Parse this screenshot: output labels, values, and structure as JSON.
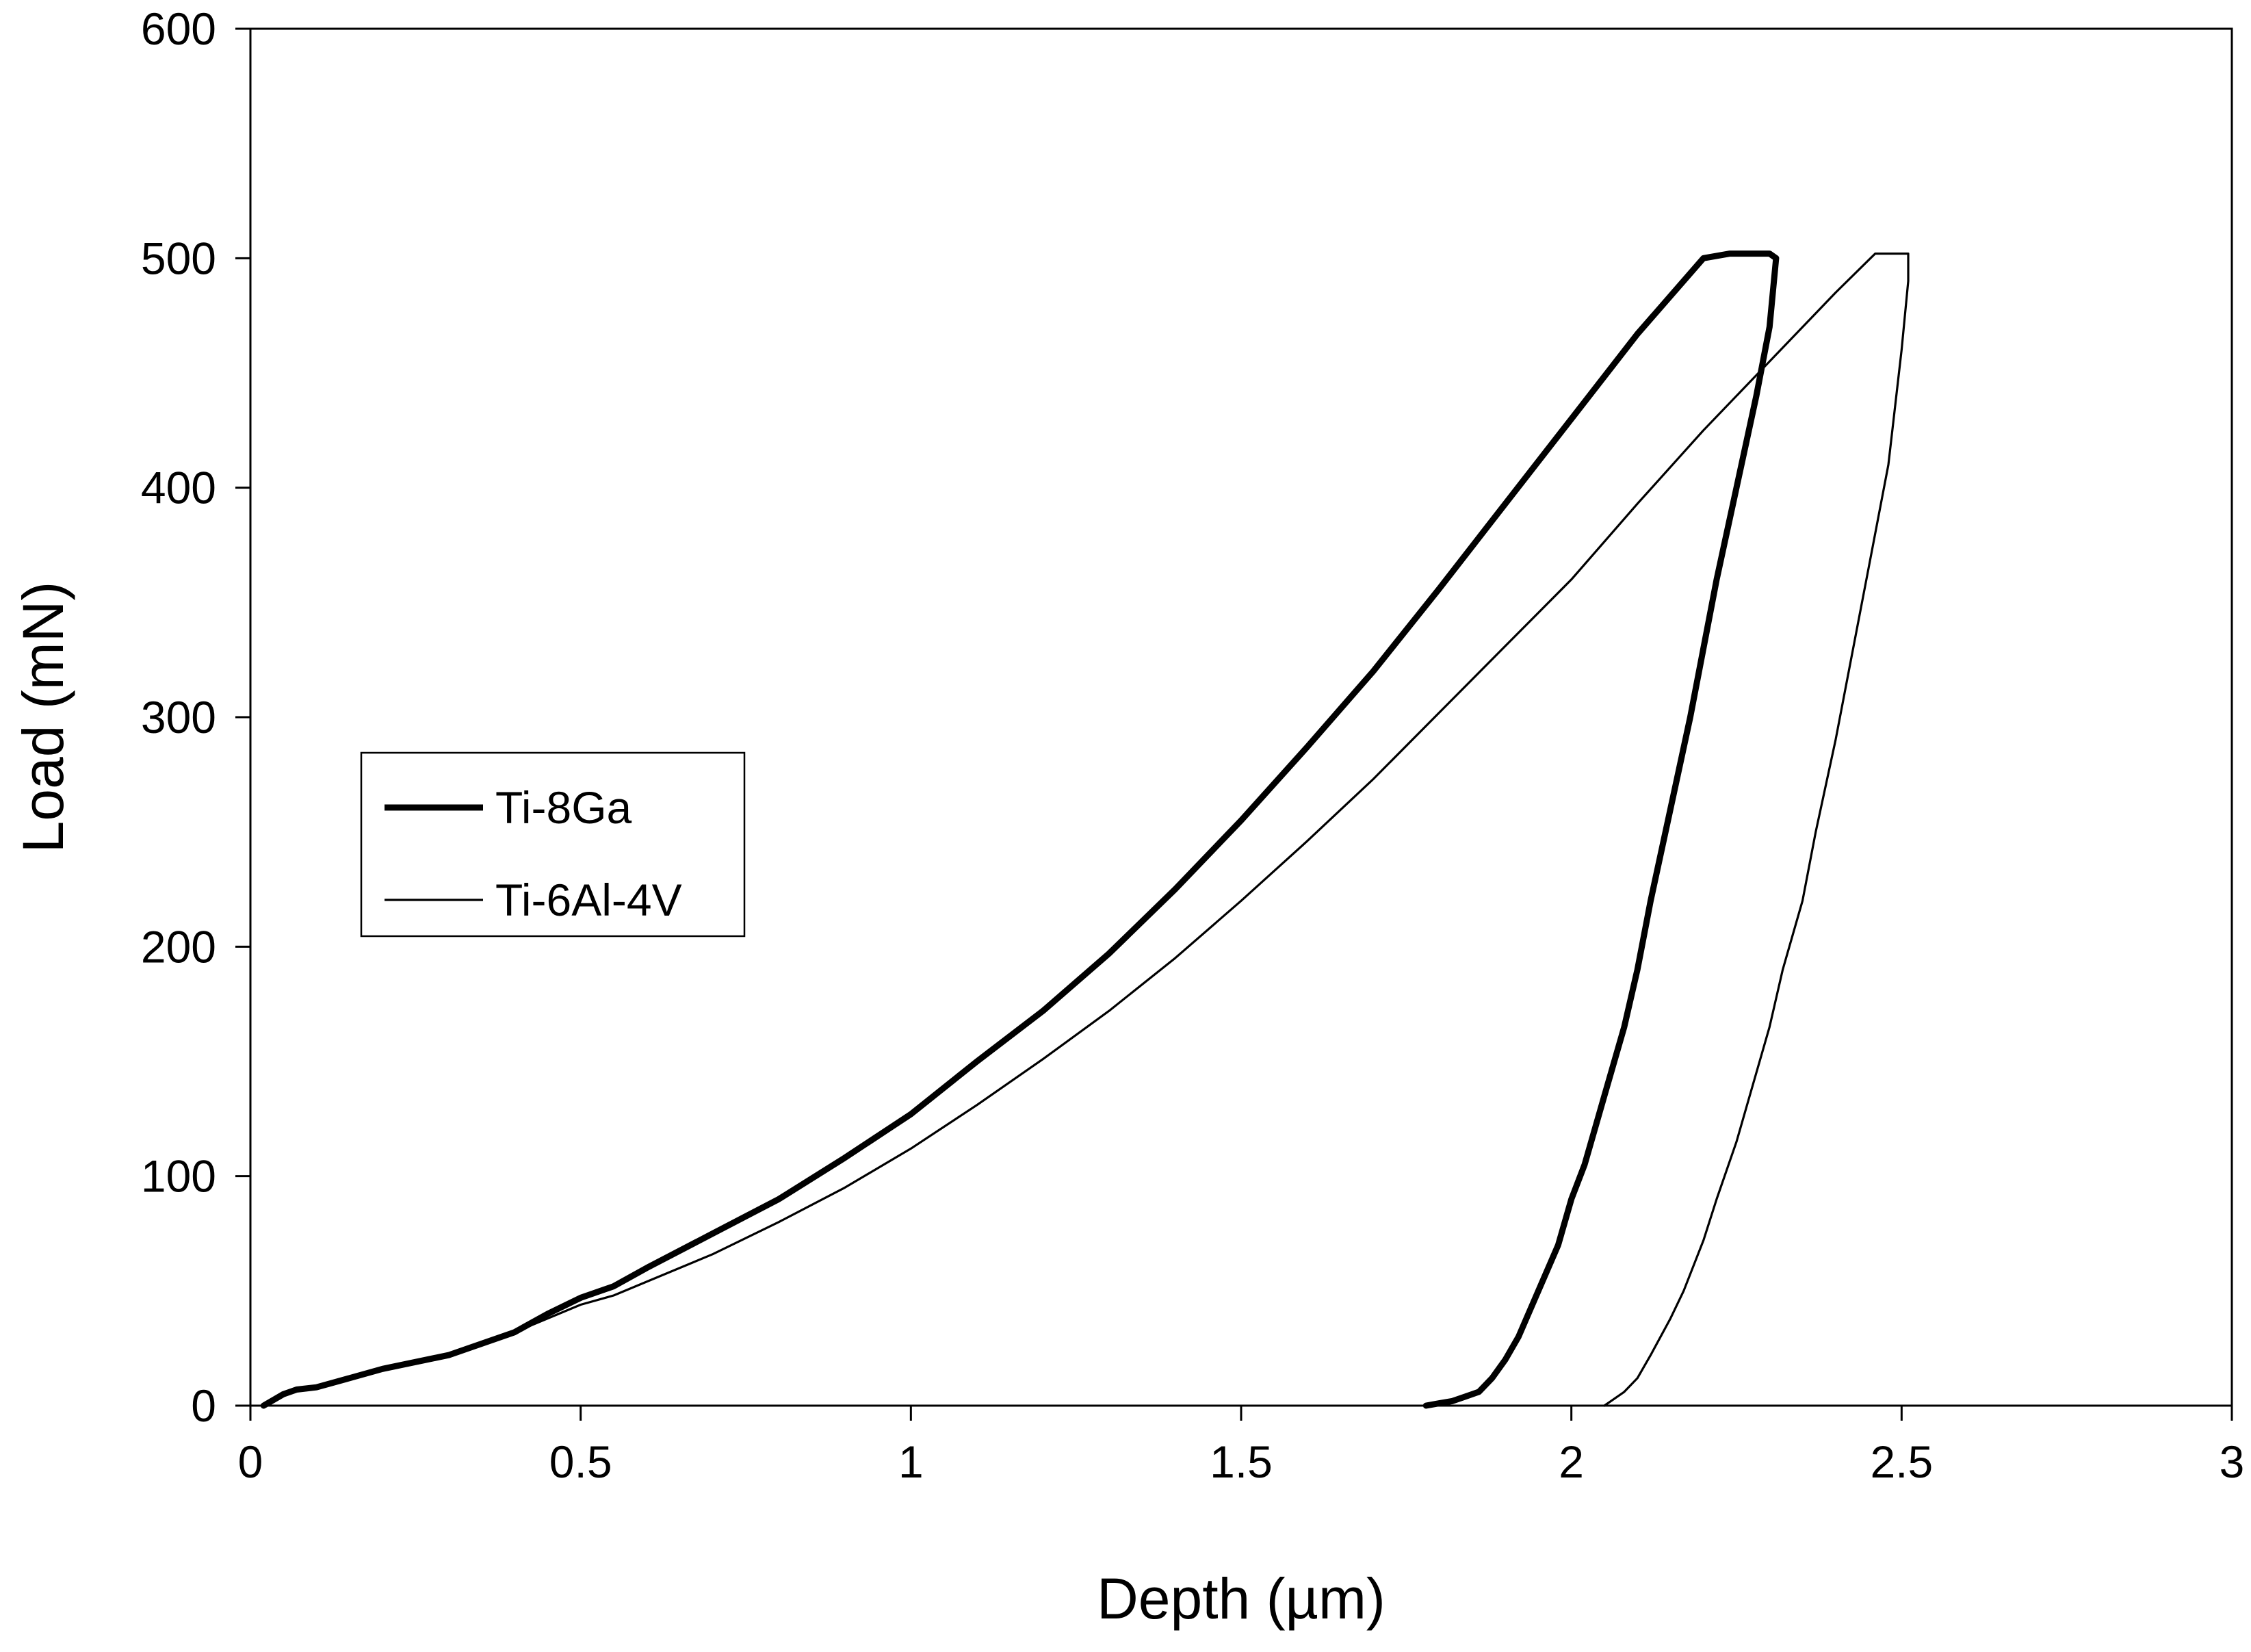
{
  "chart_data": {
    "type": "line",
    "title": "",
    "xlabel": "Depth (µm)",
    "ylabel": "Load (mN)",
    "xlim": [
      0,
      3
    ],
    "ylim": [
      0,
      600
    ],
    "x_ticks": [
      0,
      0.5,
      1,
      1.5,
      2,
      2.5,
      3
    ],
    "x_tick_labels": [
      "0",
      "0.5",
      "1",
      "1.5",
      "2",
      "2.5",
      "3"
    ],
    "y_ticks": [
      0,
      100,
      200,
      300,
      400,
      500,
      600
    ],
    "y_tick_labels": [
      "0",
      "100",
      "200",
      "300",
      "400",
      "500",
      "600"
    ],
    "grid": false,
    "legend": {
      "placement": "left-middle",
      "box": true
    },
    "series": [
      {
        "name": "Ti-8Ga",
        "color": "#000000",
        "line_weight": "thick",
        "x": [
          0.02,
          0.05,
          0.07,
          0.1,
          0.15,
          0.2,
          0.3,
          0.4,
          0.45,
          0.5,
          0.55,
          0.6,
          0.7,
          0.8,
          0.9,
          1.0,
          1.1,
          1.2,
          1.3,
          1.4,
          1.5,
          1.6,
          1.7,
          1.8,
          1.9,
          2.0,
          2.1,
          2.2,
          2.24,
          2.3,
          2.31,
          2.3,
          2.28,
          2.25,
          2.22,
          2.2,
          2.18,
          2.15,
          2.12,
          2.1,
          2.08,
          2.05,
          2.02,
          2.0,
          1.98,
          1.95,
          1.92,
          1.9,
          1.88,
          1.86,
          1.84,
          1.82,
          1.8,
          1.78
        ],
        "y": [
          0,
          5,
          7,
          8,
          12,
          16,
          22,
          32,
          40,
          47,
          52,
          60,
          75,
          90,
          108,
          127,
          150,
          172,
          197,
          225,
          255,
          287,
          320,
          356,
          393,
          430,
          467,
          500,
          502,
          502,
          500,
          470,
          440,
          400,
          360,
          330,
          300,
          260,
          220,
          190,
          165,
          135,
          105,
          90,
          70,
          50,
          30,
          20,
          12,
          6,
          4,
          2,
          1,
          0
        ]
      },
      {
        "name": "Ti-6Al-4V",
        "color": "#000000",
        "line_weight": "thin",
        "x": [
          0.02,
          0.05,
          0.07,
          0.1,
          0.15,
          0.2,
          0.3,
          0.4,
          0.45,
          0.5,
          0.55,
          0.6,
          0.7,
          0.8,
          0.9,
          1.0,
          1.1,
          1.2,
          1.3,
          1.4,
          1.5,
          1.6,
          1.7,
          1.8,
          1.9,
          2.0,
          2.1,
          2.2,
          2.3,
          2.4,
          2.46,
          2.51,
          2.51,
          2.5,
          2.48,
          2.45,
          2.42,
          2.4,
          2.37,
          2.35,
          2.32,
          2.3,
          2.27,
          2.25,
          2.22,
          2.2,
          2.17,
          2.15,
          2.12,
          2.1,
          2.08,
          2.06,
          2.05
        ],
        "y": [
          0,
          5,
          7,
          8,
          12,
          16,
          22,
          32,
          38,
          44,
          48,
          54,
          66,
          80,
          95,
          112,
          131,
          151,
          172,
          195,
          220,
          246,
          273,
          302,
          331,
          360,
          393,
          425,
          455,
          485,
          502,
          502,
          490,
          460,
          410,
          365,
          320,
          290,
          250,
          220,
          190,
          165,
          135,
          115,
          90,
          72,
          50,
          38,
          22,
          12,
          6,
          2,
          0
        ]
      }
    ]
  }
}
